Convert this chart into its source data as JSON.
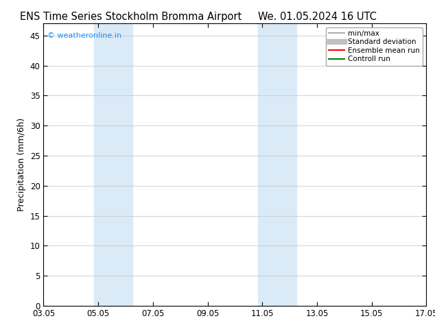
{
  "title_left": "ENS Time Series Stockholm Bromma Airport",
  "title_right": "We. 01.05.2024 16 UTC",
  "ylabel": "Precipitation (mm/6h)",
  "xlabel": "",
  "xtick_labels": [
    "03.05",
    "05.05",
    "07.05",
    "09.05",
    "11.05",
    "13.05",
    "15.05",
    "17.05"
  ],
  "xtick_values": [
    0,
    2,
    4,
    6,
    8,
    10,
    12,
    14
  ],
  "ylim": [
    0,
    47
  ],
  "ytick_values": [
    0,
    5,
    10,
    15,
    20,
    25,
    30,
    35,
    40,
    45
  ],
  "shaded_bands": [
    {
      "xmin": 1.85,
      "xmax": 3.25
    },
    {
      "xmin": 7.85,
      "xmax": 9.25
    }
  ],
  "shade_color": "#daeaf7",
  "background_color": "#ffffff",
  "grid_color": "#c8c8c8",
  "watermark_text": "© weatheronline.in",
  "watermark_color": "#1e90ff",
  "legend_entries": [
    {
      "label": "min/max",
      "color": "#b0b0b0",
      "lw": 1.5
    },
    {
      "label": "Standard deviation",
      "color": "#c0c0c0",
      "lw": 6
    },
    {
      "label": "Ensemble mean run",
      "color": "#ff0000",
      "lw": 1.5
    },
    {
      "label": "Controll run",
      "color": "#008000",
      "lw": 1.5
    }
  ],
  "title_fontsize": 10.5,
  "tick_fontsize": 8.5,
  "ylabel_fontsize": 9,
  "watermark_fontsize": 8
}
